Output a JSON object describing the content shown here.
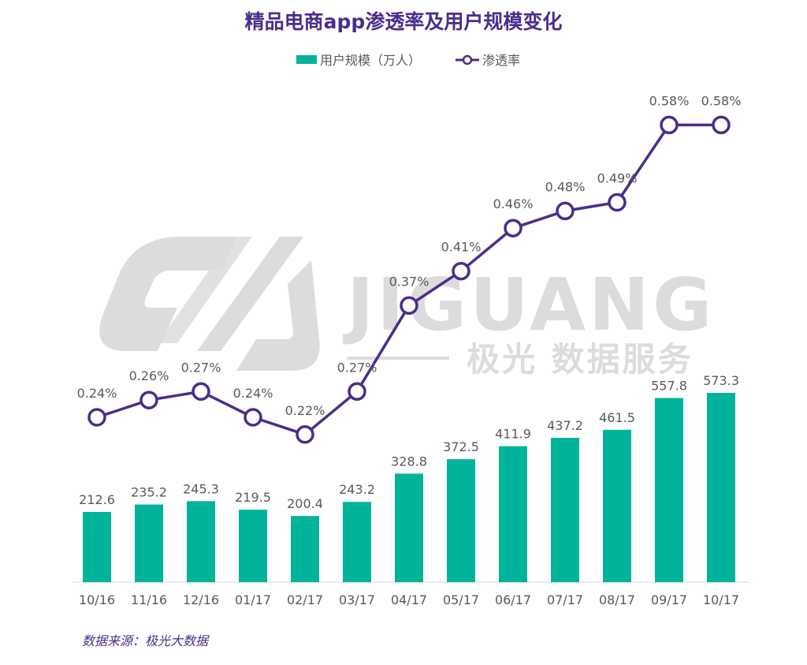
{
  "title": "精品电商app渗透率及用户规模变化",
  "legend": {
    "bar_label": "用户规模（万人）",
    "line_label": "渗透率"
  },
  "watermark": {
    "brand": "JIGUANG",
    "subtitle": "极光 数据服务"
  },
  "source": "数据来源：极光大数据",
  "colors": {
    "bar": "#00b39a",
    "line": "#4b2d8c",
    "title": "#4b2d8c",
    "text": "#595959",
    "watermark": "#dcdcdc"
  },
  "chart_data": {
    "type": "bar+line",
    "categories": [
      "10/16",
      "11/16",
      "12/16",
      "01/17",
      "02/17",
      "03/17",
      "04/17",
      "05/17",
      "06/17",
      "07/17",
      "08/17",
      "09/17",
      "10/17"
    ],
    "series": [
      {
        "name": "用户规模（万人）",
        "type": "bar",
        "values": [
          212.6,
          235.2,
          245.3,
          219.5,
          200.4,
          243.2,
          328.8,
          372.5,
          411.9,
          437.2,
          461.5,
          557.8,
          573.3
        ],
        "labels": [
          "212.6",
          "235.2",
          "245.3",
          "219.5",
          "200.4",
          "243.2",
          "328.8",
          "372.5",
          "411.9",
          "437.2",
          "461.5",
          "557.8",
          "573.3"
        ]
      },
      {
        "name": "渗透率",
        "type": "line",
        "values": [
          0.24,
          0.26,
          0.27,
          0.24,
          0.22,
          0.27,
          0.37,
          0.41,
          0.46,
          0.48,
          0.49,
          0.58,
          0.58
        ],
        "labels": [
          "0.24%",
          "0.26%",
          "0.27%",
          "0.24%",
          "0.22%",
          "0.27%",
          "0.37%",
          "0.41%",
          "0.46%",
          "0.48%",
          "0.49%",
          "0.58%",
          "0.58%"
        ]
      }
    ],
    "legend_position": "top-center",
    "grid": false
  }
}
